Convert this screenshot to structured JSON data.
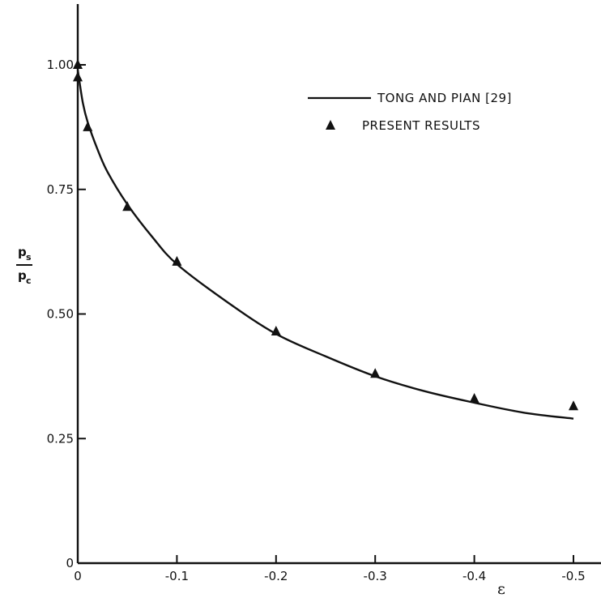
{
  "chart_data": {
    "type": "line",
    "title": "",
    "xlabel": "ε",
    "ylabel": {
      "numerator": "p",
      "numerator_sub": "s",
      "denominator": "p",
      "denominator_sub": "c"
    },
    "xlim": [
      0,
      -0.52
    ],
    "ylim": [
      0,
      1.12
    ],
    "x_ticks": [
      0,
      -0.1,
      -0.2,
      -0.3,
      -0.4,
      -0.5
    ],
    "x_tick_labels": [
      "0",
      "-0.1",
      "-0.2",
      "-0.3",
      "-0.4",
      "-0.5"
    ],
    "y_ticks": [
      0,
      0.25,
      0.5,
      0.75,
      1.0
    ],
    "y_tick_labels": [
      "0",
      "0.25",
      "0.50",
      "0.75",
      "1.00"
    ],
    "grid": false,
    "legend_position": "top-right",
    "colors": {
      "ink": "#111111"
    },
    "series": [
      {
        "name": "TONG AND PIAN [29]",
        "style": "line",
        "x": [
          0,
          -0.005,
          -0.01,
          -0.02,
          -0.03,
          -0.05,
          -0.075,
          -0.1,
          -0.15,
          -0.2,
          -0.25,
          -0.3,
          -0.35,
          -0.4,
          -0.45,
          -0.5
        ],
        "y": [
          0.99,
          0.925,
          0.885,
          0.83,
          0.785,
          0.72,
          0.655,
          0.6,
          0.525,
          0.46,
          0.415,
          0.375,
          0.345,
          0.322,
          0.302,
          0.29
        ]
      },
      {
        "name": "PRESENT RESULTS",
        "style": "marker-triangle",
        "x": [
          0,
          0,
          -0.01,
          -0.05,
          -0.1,
          -0.2,
          -0.3,
          -0.4,
          -0.5
        ],
        "y": [
          1.0,
          0.975,
          0.875,
          0.715,
          0.605,
          0.465,
          0.38,
          0.33,
          0.315
        ]
      }
    ]
  }
}
